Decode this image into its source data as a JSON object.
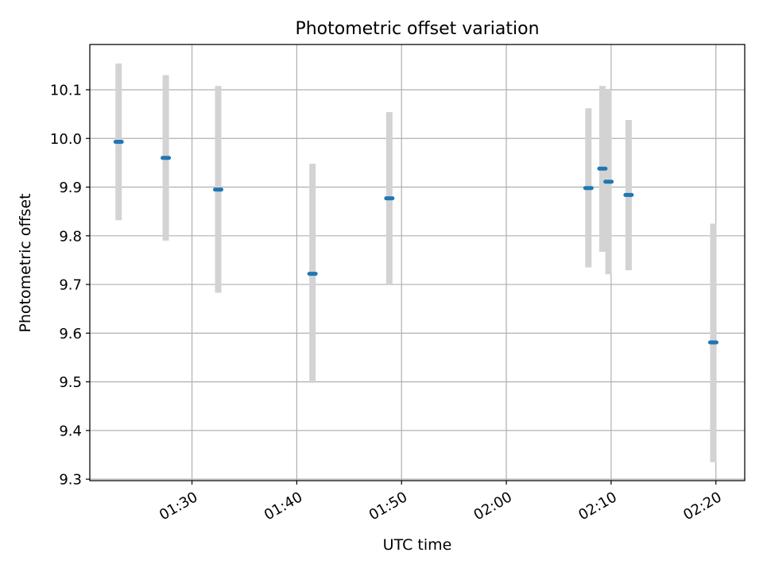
{
  "chart_data": {
    "type": "scatter",
    "title": "Photometric offset variation",
    "xlabel": "UTC time",
    "ylabel": "Photometric offset",
    "x_tick_labels": [
      "01:30",
      "01:40",
      "01:50",
      "02:00",
      "02:10",
      "02:20"
    ],
    "x_ticks": [
      "01:30",
      "01:40",
      "01:50",
      "02:00",
      "02:10",
      "02:20"
    ],
    "xlim": [
      "01:20:15",
      "02:22:45"
    ],
    "y_ticks": [
      9.3,
      9.4,
      9.5,
      9.6,
      9.7,
      9.8,
      9.9,
      10.0,
      10.1
    ],
    "y_tick_labels": [
      "9.3",
      "9.4",
      "9.5",
      "9.6",
      "9.7",
      "9.8",
      "9.9",
      "10.0",
      "10.1"
    ],
    "ylim": [
      9.297,
      10.193
    ],
    "grid": true,
    "points": [
      {
        "x": "01:23:00",
        "y": 9.993,
        "err_low": 9.832,
        "err_high": 10.154
      },
      {
        "x": "01:27:30",
        "y": 9.96,
        "err_low": 9.79,
        "err_high": 10.13
      },
      {
        "x": "01:32:30",
        "y": 9.895,
        "err_low": 9.683,
        "err_high": 10.108
      },
      {
        "x": "01:41:30",
        "y": 9.722,
        "err_low": 9.498,
        "err_high": 9.948
      },
      {
        "x": "01:48:50",
        "y": 9.877,
        "err_low": 9.7,
        "err_high": 10.054
      },
      {
        "x": "02:07:50",
        "y": 9.898,
        "err_low": 9.735,
        "err_high": 10.062
      },
      {
        "x": "02:09:10",
        "y": 9.938,
        "err_low": 9.767,
        "err_high": 10.108
      },
      {
        "x": "02:09:45",
        "y": 9.911,
        "err_low": 9.721,
        "err_high": 10.1
      },
      {
        "x": "02:11:40",
        "y": 9.884,
        "err_low": 9.729,
        "err_high": 10.038
      },
      {
        "x": "02:19:45",
        "y": 9.581,
        "err_low": 9.335,
        "err_high": 9.825
      }
    ],
    "colors": {
      "marker": "#1f77b4",
      "errorbar": "#d3d3d3",
      "grid": "#b0b0b0",
      "axis": "#000000"
    }
  }
}
